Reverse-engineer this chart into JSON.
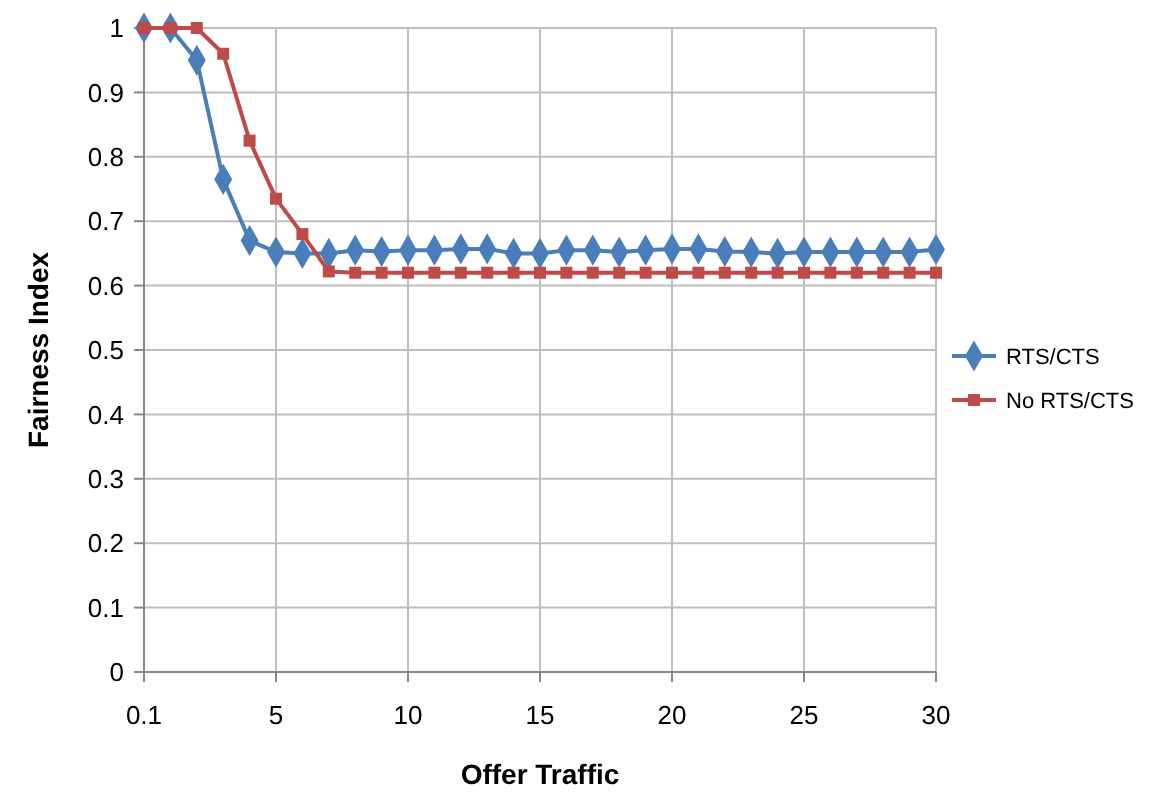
{
  "chart_data": {
    "type": "line",
    "xlabel": "Offer Traffic",
    "ylabel": "Fairness Index",
    "categories": [
      "0.1",
      null,
      null,
      null,
      null,
      "5",
      null,
      null,
      null,
      null,
      "10",
      null,
      null,
      null,
      null,
      "15",
      null,
      null,
      null,
      null,
      "20",
      null,
      null,
      null,
      null,
      "25",
      null,
      null,
      null,
      null,
      "30"
    ],
    "series": [
      {
        "name": "RTS/CTS",
        "color": "#4a7ebb",
        "marker": "diamond",
        "values": [
          1,
          1,
          0.95,
          0.765,
          0.67,
          0.652,
          0.65,
          0.65,
          0.655,
          0.653,
          0.655,
          0.655,
          0.657,
          0.657,
          0.65,
          0.65,
          0.655,
          0.655,
          0.652,
          0.655,
          0.657,
          0.657,
          0.653,
          0.652,
          0.65,
          0.652,
          0.652,
          0.652,
          0.652,
          0.652,
          0.656
        ]
      },
      {
        "name": "No RTS/CTS",
        "color": "#be4b48",
        "marker": "square",
        "values": [
          1,
          1,
          1,
          0.96,
          0.825,
          0.735,
          0.68,
          0.622,
          0.62,
          0.62,
          0.62,
          0.62,
          0.62,
          0.62,
          0.62,
          0.62,
          0.62,
          0.62,
          0.62,
          0.62,
          0.62,
          0.62,
          0.62,
          0.62,
          0.62,
          0.62,
          0.62,
          0.62,
          0.62,
          0.62,
          0.62
        ]
      }
    ],
    "ylim": [
      0,
      1
    ],
    "yticks": [
      0,
      0.1,
      0.2,
      0.3,
      0.4,
      0.5,
      0.6,
      0.7,
      0.8,
      0.9,
      1
    ],
    "grid": true,
    "legend": "right",
    "line_style": "solid"
  }
}
